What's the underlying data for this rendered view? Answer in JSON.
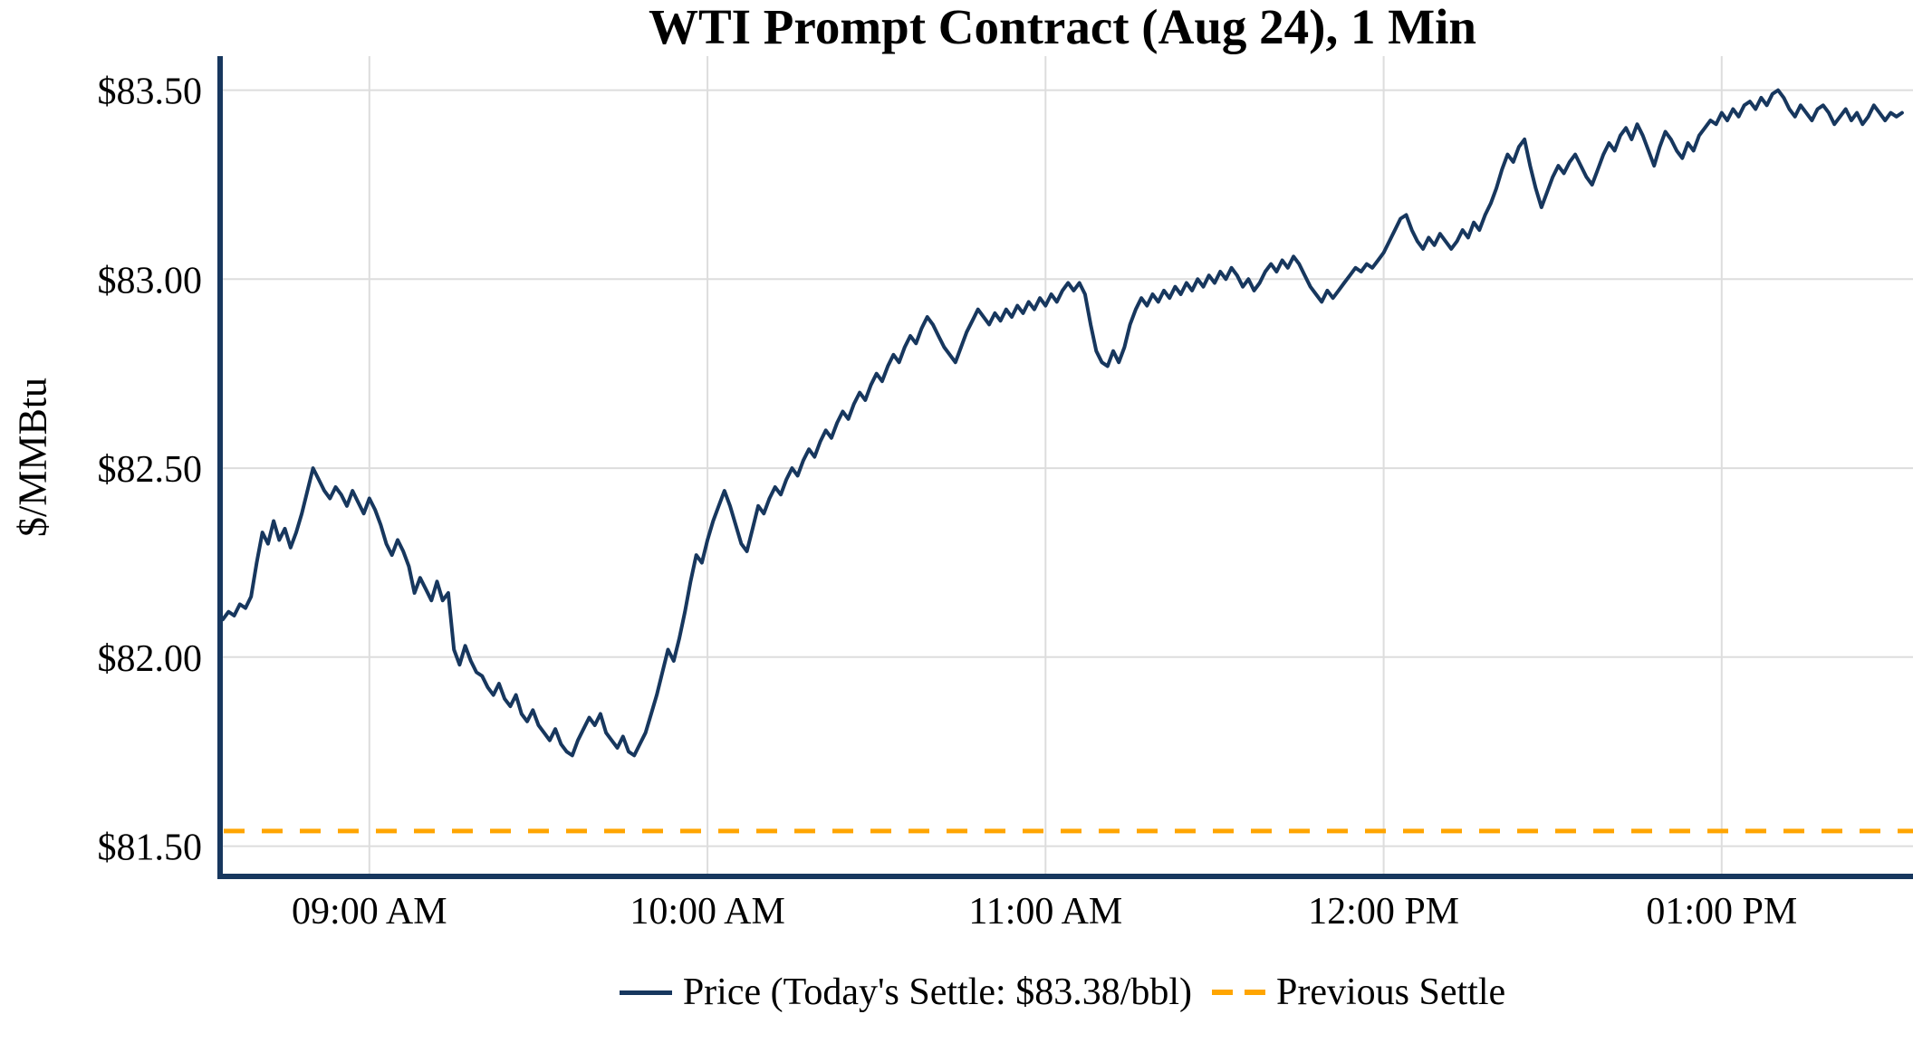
{
  "chart_data": {
    "type": "line",
    "title": "WTI Prompt Contract (Aug 24), 1 Min",
    "xlabel": "",
    "ylabel": "$/MMBtu",
    "grid": true,
    "legend_position": "bottom",
    "x_unit": "minutes-since-midnight",
    "xlim_minutes": [
      513.5,
      812.5
    ],
    "ylim": [
      81.42,
      83.59
    ],
    "today_settle_per_bbl": 83.38,
    "x_ticks": [
      {
        "minutes": 540,
        "label": "09:00 AM"
      },
      {
        "minutes": 600,
        "label": "10:00 AM"
      },
      {
        "minutes": 660,
        "label": "11:00 AM"
      },
      {
        "minutes": 720,
        "label": "12:00 PM"
      },
      {
        "minutes": 780,
        "label": "01:00 PM"
      }
    ],
    "y_ticks": [
      {
        "value": 83.5,
        "label": "$83.50"
      },
      {
        "value": 83.0,
        "label": "$83.00"
      },
      {
        "value": 82.5,
        "label": "$82.50"
      },
      {
        "value": 82.0,
        "label": "$82.00"
      },
      {
        "value": 81.5,
        "label": "$81.50"
      }
    ],
    "colors": {
      "price": "#17375E",
      "previous_settle": "#FFA500",
      "grid": "#DDDDDD",
      "axis": "#17375E",
      "text": "#000000",
      "background": "#FFFFFF"
    },
    "series": [
      {
        "name": "Price (Today's Settle: $83.38/bbl)",
        "style": "solid",
        "points": [
          [
            514,
            82.1
          ],
          [
            515,
            82.12
          ],
          [
            516,
            82.11
          ],
          [
            517,
            82.14
          ],
          [
            518,
            82.13
          ],
          [
            519,
            82.16
          ],
          [
            520,
            82.25
          ],
          [
            521,
            82.33
          ],
          [
            522,
            82.3
          ],
          [
            523,
            82.36
          ],
          [
            524,
            82.31
          ],
          [
            525,
            82.34
          ],
          [
            526,
            82.29
          ],
          [
            527,
            82.33
          ],
          [
            528,
            82.38
          ],
          [
            529,
            82.44
          ],
          [
            530,
            82.5
          ],
          [
            531,
            82.47
          ],
          [
            532,
            82.44
          ],
          [
            533,
            82.42
          ],
          [
            534,
            82.45
          ],
          [
            535,
            82.43
          ],
          [
            536,
            82.4
          ],
          [
            537,
            82.44
          ],
          [
            538,
            82.41
          ],
          [
            539,
            82.38
          ],
          [
            540,
            82.42
          ],
          [
            541,
            82.39
          ],
          [
            542,
            82.35
          ],
          [
            543,
            82.3
          ],
          [
            544,
            82.27
          ],
          [
            545,
            82.31
          ],
          [
            546,
            82.28
          ],
          [
            547,
            82.24
          ],
          [
            548,
            82.17
          ],
          [
            549,
            82.21
          ],
          [
            550,
            82.18
          ],
          [
            551,
            82.15
          ],
          [
            552,
            82.2
          ],
          [
            553,
            82.15
          ],
          [
            554,
            82.17
          ],
          [
            555,
            82.02
          ],
          [
            556,
            81.98
          ],
          [
            557,
            82.03
          ],
          [
            558,
            81.99
          ],
          [
            559,
            81.96
          ],
          [
            560,
            81.95
          ],
          [
            561,
            81.92
          ],
          [
            562,
            81.9
          ],
          [
            563,
            81.93
          ],
          [
            564,
            81.89
          ],
          [
            565,
            81.87
          ],
          [
            566,
            81.9
          ],
          [
            567,
            81.85
          ],
          [
            568,
            81.83
          ],
          [
            569,
            81.86
          ],
          [
            570,
            81.82
          ],
          [
            571,
            81.8
          ],
          [
            572,
            81.78
          ],
          [
            573,
            81.81
          ],
          [
            574,
            81.77
          ],
          [
            575,
            81.75
          ],
          [
            576,
            81.74
          ],
          [
            577,
            81.78
          ],
          [
            578,
            81.81
          ],
          [
            579,
            81.84
          ],
          [
            580,
            81.82
          ],
          [
            581,
            81.85
          ],
          [
            582,
            81.8
          ],
          [
            583,
            81.78
          ],
          [
            584,
            81.76
          ],
          [
            585,
            81.79
          ],
          [
            586,
            81.75
          ],
          [
            587,
            81.74
          ],
          [
            588,
            81.77
          ],
          [
            589,
            81.8
          ],
          [
            590,
            81.85
          ],
          [
            591,
            81.9
          ],
          [
            592,
            81.96
          ],
          [
            593,
            82.02
          ],
          [
            594,
            81.99
          ],
          [
            595,
            82.05
          ],
          [
            596,
            82.12
          ],
          [
            597,
            82.2
          ],
          [
            598,
            82.27
          ],
          [
            599,
            82.25
          ],
          [
            600,
            82.31
          ],
          [
            601,
            82.36
          ],
          [
            602,
            82.4
          ],
          [
            603,
            82.44
          ],
          [
            604,
            82.4
          ],
          [
            605,
            82.35
          ],
          [
            606,
            82.3
          ],
          [
            607,
            82.28
          ],
          [
            608,
            82.34
          ],
          [
            609,
            82.4
          ],
          [
            610,
            82.38
          ],
          [
            611,
            82.42
          ],
          [
            612,
            82.45
          ],
          [
            613,
            82.43
          ],
          [
            614,
            82.47
          ],
          [
            615,
            82.5
          ],
          [
            616,
            82.48
          ],
          [
            617,
            82.52
          ],
          [
            618,
            82.55
          ],
          [
            619,
            82.53
          ],
          [
            620,
            82.57
          ],
          [
            621,
            82.6
          ],
          [
            622,
            82.58
          ],
          [
            623,
            82.62
          ],
          [
            624,
            82.65
          ],
          [
            625,
            82.63
          ],
          [
            626,
            82.67
          ],
          [
            627,
            82.7
          ],
          [
            628,
            82.68
          ],
          [
            629,
            82.72
          ],
          [
            630,
            82.75
          ],
          [
            631,
            82.73
          ],
          [
            632,
            82.77
          ],
          [
            633,
            82.8
          ],
          [
            634,
            82.78
          ],
          [
            635,
            82.82
          ],
          [
            636,
            82.85
          ],
          [
            637,
            82.83
          ],
          [
            638,
            82.87
          ],
          [
            639,
            82.9
          ],
          [
            640,
            82.88
          ],
          [
            641,
            82.85
          ],
          [
            642,
            82.82
          ],
          [
            643,
            82.8
          ],
          [
            644,
            82.78
          ],
          [
            645,
            82.82
          ],
          [
            646,
            82.86
          ],
          [
            647,
            82.89
          ],
          [
            648,
            82.92
          ],
          [
            649,
            82.9
          ],
          [
            650,
            82.88
          ],
          [
            651,
            82.91
          ],
          [
            652,
            82.89
          ],
          [
            653,
            82.92
          ],
          [
            654,
            82.9
          ],
          [
            655,
            82.93
          ],
          [
            656,
            82.91
          ],
          [
            657,
            82.94
          ],
          [
            658,
            82.92
          ],
          [
            659,
            82.95
          ],
          [
            660,
            82.93
          ],
          [
            661,
            82.96
          ],
          [
            662,
            82.94
          ],
          [
            663,
            82.97
          ],
          [
            664,
            82.99
          ],
          [
            665,
            82.97
          ],
          [
            666,
            82.99
          ],
          [
            667,
            82.96
          ],
          [
            668,
            82.88
          ],
          [
            669,
            82.81
          ],
          [
            670,
            82.78
          ],
          [
            671,
            82.77
          ],
          [
            672,
            82.81
          ],
          [
            673,
            82.78
          ],
          [
            674,
            82.82
          ],
          [
            675,
            82.88
          ],
          [
            676,
            82.92
          ],
          [
            677,
            82.95
          ],
          [
            678,
            82.93
          ],
          [
            679,
            82.96
          ],
          [
            680,
            82.94
          ],
          [
            681,
            82.97
          ],
          [
            682,
            82.95
          ],
          [
            683,
            82.98
          ],
          [
            684,
            82.96
          ],
          [
            685,
            82.99
          ],
          [
            686,
            82.97
          ],
          [
            687,
            83.0
          ],
          [
            688,
            82.98
          ],
          [
            689,
            83.01
          ],
          [
            690,
            82.99
          ],
          [
            691,
            83.02
          ],
          [
            692,
            83.0
          ],
          [
            693,
            83.03
          ],
          [
            694,
            83.01
          ],
          [
            695,
            82.98
          ],
          [
            696,
            83.0
          ],
          [
            697,
            82.97
          ],
          [
            698,
            82.99
          ],
          [
            699,
            83.02
          ],
          [
            700,
            83.04
          ],
          [
            701,
            83.02
          ],
          [
            702,
            83.05
          ],
          [
            703,
            83.03
          ],
          [
            704,
            83.06
          ],
          [
            705,
            83.04
          ],
          [
            706,
            83.01
          ],
          [
            707,
            82.98
          ],
          [
            708,
            82.96
          ],
          [
            709,
            82.94
          ],
          [
            710,
            82.97
          ],
          [
            711,
            82.95
          ],
          [
            712,
            82.97
          ],
          [
            713,
            82.99
          ],
          [
            714,
            83.01
          ],
          [
            715,
            83.03
          ],
          [
            716,
            83.02
          ],
          [
            717,
            83.04
          ],
          [
            718,
            83.03
          ],
          [
            719,
            83.05
          ],
          [
            720,
            83.07
          ],
          [
            721,
            83.1
          ],
          [
            722,
            83.13
          ],
          [
            723,
            83.16
          ],
          [
            724,
            83.17
          ],
          [
            725,
            83.13
          ],
          [
            726,
            83.1
          ],
          [
            727,
            83.08
          ],
          [
            728,
            83.11
          ],
          [
            729,
            83.09
          ],
          [
            730,
            83.12
          ],
          [
            731,
            83.1
          ],
          [
            732,
            83.08
          ],
          [
            733,
            83.1
          ],
          [
            734,
            83.13
          ],
          [
            735,
            83.11
          ],
          [
            736,
            83.15
          ],
          [
            737,
            83.13
          ],
          [
            738,
            83.17
          ],
          [
            739,
            83.2
          ],
          [
            740,
            83.24
          ],
          [
            741,
            83.29
          ],
          [
            742,
            83.33
          ],
          [
            743,
            83.31
          ],
          [
            744,
            83.35
          ],
          [
            745,
            83.37
          ],
          [
            746,
            83.3
          ],
          [
            747,
            83.24
          ],
          [
            748,
            83.19
          ],
          [
            749,
            83.23
          ],
          [
            750,
            83.27
          ],
          [
            751,
            83.3
          ],
          [
            752,
            83.28
          ],
          [
            753,
            83.31
          ],
          [
            754,
            83.33
          ],
          [
            755,
            83.3
          ],
          [
            756,
            83.27
          ],
          [
            757,
            83.25
          ],
          [
            758,
            83.29
          ],
          [
            759,
            83.33
          ],
          [
            760,
            83.36
          ],
          [
            761,
            83.34
          ],
          [
            762,
            83.38
          ],
          [
            763,
            83.4
          ],
          [
            764,
            83.37
          ],
          [
            765,
            83.41
          ],
          [
            766,
            83.38
          ],
          [
            767,
            83.34
          ],
          [
            768,
            83.3
          ],
          [
            769,
            83.35
          ],
          [
            770,
            83.39
          ],
          [
            771,
            83.37
          ],
          [
            772,
            83.34
          ],
          [
            773,
            83.32
          ],
          [
            774,
            83.36
          ],
          [
            775,
            83.34
          ],
          [
            776,
            83.38
          ],
          [
            777,
            83.4
          ],
          [
            778,
            83.42
          ],
          [
            779,
            83.41
          ],
          [
            780,
            83.44
          ],
          [
            781,
            83.42
          ],
          [
            782,
            83.45
          ],
          [
            783,
            83.43
          ],
          [
            784,
            83.46
          ],
          [
            785,
            83.47
          ],
          [
            786,
            83.45
          ],
          [
            787,
            83.48
          ],
          [
            788,
            83.46
          ],
          [
            789,
            83.49
          ],
          [
            790,
            83.5
          ],
          [
            791,
            83.48
          ],
          [
            792,
            83.45
          ],
          [
            793,
            83.43
          ],
          [
            794,
            83.46
          ],
          [
            795,
            83.44
          ],
          [
            796,
            83.42
          ],
          [
            797,
            83.45
          ],
          [
            798,
            83.46
          ],
          [
            799,
            83.44
          ],
          [
            800,
            83.41
          ],
          [
            801,
            83.43
          ],
          [
            802,
            83.45
          ],
          [
            803,
            83.42
          ],
          [
            804,
            83.44
          ],
          [
            805,
            83.41
          ],
          [
            806,
            83.43
          ],
          [
            807,
            83.46
          ],
          [
            808,
            83.44
          ],
          [
            809,
            83.42
          ],
          [
            810,
            83.44
          ],
          [
            811,
            83.43
          ],
          [
            812,
            83.44
          ]
        ]
      },
      {
        "name": "Previous Settle",
        "style": "dashed-hline",
        "value": 81.54
      }
    ]
  }
}
